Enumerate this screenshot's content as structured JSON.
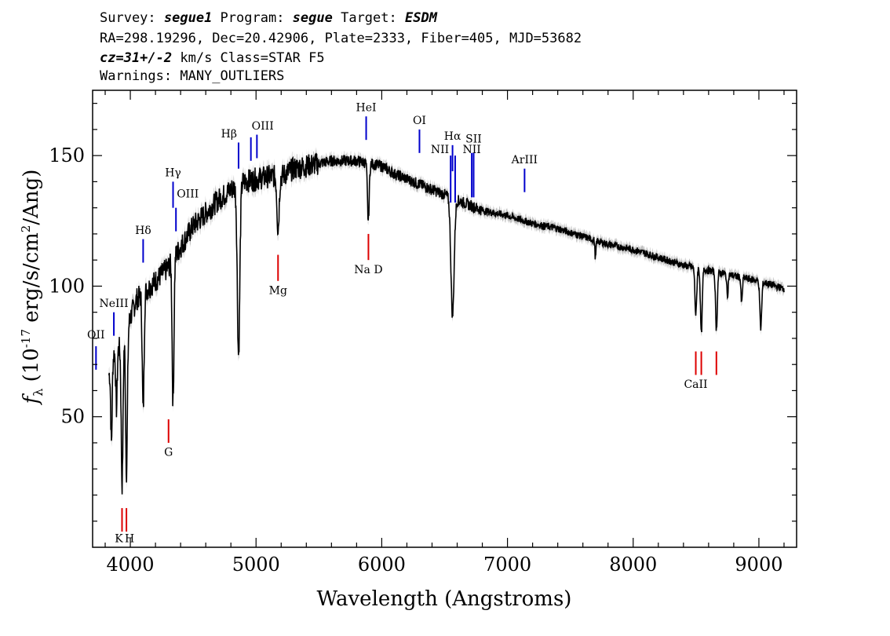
{
  "header": {
    "line1": [
      {
        "text": "Survey: ",
        "italic": false
      },
      {
        "text": "segue1",
        "italic": true
      },
      {
        "text": " Program: ",
        "italic": false
      },
      {
        "text": "segue",
        "italic": true
      },
      {
        "text": " Target: ",
        "italic": false
      },
      {
        "text": "ESDM",
        "italic": true
      }
    ],
    "line2": "RA=298.19296, Dec=20.42906, Plate=2333, Fiber=405, MJD=53682",
    "line3": [
      {
        "text": "cz=31+/-2",
        "italic": true
      },
      {
        "text": " km/s Class=STAR F5",
        "italic": false
      }
    ],
    "line4": "Warnings: MANY_OUTLIERS"
  },
  "chart_data": {
    "type": "line",
    "xlabel": "Wavelength (Angstroms)",
    "ylabel_parts": {
      "f": "f",
      "sub": "λ",
      "pre": " (10",
      "exp1": "-17",
      "mid": " erg/s/cm",
      "exp2": "2",
      "post": "/Ang)"
    },
    "xlim": [
      3700,
      9300
    ],
    "ylim": [
      0,
      175
    ],
    "xticks_major": [
      4000,
      5000,
      6000,
      7000,
      8000,
      9000
    ],
    "xtick_labels": [
      "4000",
      "5000",
      "6000",
      "7000",
      "8000",
      "9000"
    ],
    "yticks_major": [
      50,
      100,
      150
    ],
    "ytick_labels": [
      "50",
      "100",
      "150"
    ],
    "colors": {
      "spectrum": "#000000",
      "error": "#b0b0b0",
      "emission": "#0000cc",
      "absorption": "#dd0000"
    },
    "continuum_points": [
      [
        3830,
        66
      ],
      [
        3870,
        74
      ],
      [
        3920,
        77
      ],
      [
        4000,
        88
      ],
      [
        4050,
        95
      ],
      [
        4100,
        97
      ],
      [
        4200,
        102
      ],
      [
        4300,
        107
      ],
      [
        4400,
        115
      ],
      [
        4500,
        123
      ],
      [
        4600,
        128
      ],
      [
        4700,
        133
      ],
      [
        4800,
        137
      ],
      [
        4900,
        140
      ],
      [
        5000,
        141
      ],
      [
        5100,
        142
      ],
      [
        5200,
        142
      ],
      [
        5300,
        145
      ],
      [
        5400,
        146
      ],
      [
        5500,
        147
      ],
      [
        5600,
        148
      ],
      [
        5700,
        148
      ],
      [
        5800,
        148
      ],
      [
        5900,
        147
      ],
      [
        6000,
        146
      ],
      [
        6100,
        143
      ],
      [
        6200,
        141
      ],
      [
        6300,
        139
      ],
      [
        6400,
        137
      ],
      [
        6500,
        135
      ],
      [
        6600,
        133
      ],
      [
        6700,
        131
      ],
      [
        6800,
        129
      ],
      [
        7000,
        127
      ],
      [
        7200,
        124
      ],
      [
        7400,
        122
      ],
      [
        7600,
        119
      ],
      [
        7800,
        116
      ],
      [
        8000,
        114
      ],
      [
        8200,
        111
      ],
      [
        8400,
        108
      ],
      [
        8600,
        106
      ],
      [
        8800,
        104
      ],
      [
        9000,
        102
      ],
      [
        9200,
        99
      ]
    ],
    "absorption_dips": [
      {
        "x": 3850,
        "depth": 30,
        "width": 8
      },
      {
        "x": 3890,
        "depth": 22,
        "width": 8
      },
      {
        "x": 3935,
        "depth": 55,
        "width": 10
      },
      {
        "x": 3970,
        "depth": 55,
        "width": 10
      },
      {
        "x": 4102,
        "depth": 45,
        "width": 10
      },
      {
        "x": 4340,
        "depth": 55,
        "width": 10
      },
      {
        "x": 4861,
        "depth": 65,
        "width": 14
      },
      {
        "x": 5175,
        "depth": 20,
        "width": 12
      },
      {
        "x": 5893,
        "depth": 22,
        "width": 10
      },
      {
        "x": 6563,
        "depth": 45,
        "width": 18
      },
      {
        "x": 7700,
        "depth": 7,
        "width": 6
      },
      {
        "x": 8498,
        "depth": 18,
        "width": 10
      },
      {
        "x": 8542,
        "depth": 25,
        "width": 10
      },
      {
        "x": 8662,
        "depth": 22,
        "width": 10
      },
      {
        "x": 8750,
        "depth": 8,
        "width": 8
      },
      {
        "x": 8863,
        "depth": 10,
        "width": 8
      },
      {
        "x": 9015,
        "depth": 18,
        "width": 10
      }
    ],
    "emission_lines": [
      {
        "label": "OII",
        "x": 3727,
        "y0": 68,
        "y1": 77,
        "ly": 80,
        "align": "middle"
      },
      {
        "label": "NeIII",
        "x": 3869,
        "y0": 81,
        "y1": 90,
        "ly": 92,
        "align": "middle"
      },
      {
        "label": "Hδ",
        "x": 4102,
        "y0": 109,
        "y1": 118,
        "ly": 120,
        "align": "middle"
      },
      {
        "label": "Hγ",
        "x": 4340,
        "y0": 130,
        "y1": 140,
        "ly": 142,
        "align": "middle"
      },
      {
        "label": "OIII",
        "x": 4363,
        "y0": 121,
        "y1": 130,
        "ly": 134,
        "align": "start"
      },
      {
        "label": "Hβ",
        "x": 4861,
        "y0": 145,
        "y1": 155,
        "ly": 157,
        "align": "end"
      },
      {
        "label": "OIII",
        "x": 4959,
        "y0": 148,
        "y1": 157,
        "ly": 160,
        "align": "start"
      },
      {
        "label": "",
        "x": 5007,
        "y0": 149,
        "y1": 158,
        "ly": 0,
        "align": "middle"
      },
      {
        "label": "HeI",
        "x": 5876,
        "y0": 156,
        "y1": 165,
        "ly": 167,
        "align": "middle"
      },
      {
        "label": "OI",
        "x": 6300,
        "y0": 151,
        "y1": 160,
        "ly": 162,
        "align": "middle"
      },
      {
        "label": "NII",
        "x": 6548,
        "y0": 132,
        "y1": 150,
        "ly": 151,
        "align": "end"
      },
      {
        "label": "Hα",
        "x": 6563,
        "y0": 144,
        "y1": 154,
        "ly": 156,
        "align": "middle"
      },
      {
        "label": "",
        "x": 6584,
        "y0": 132,
        "y1": 150,
        "ly": 0,
        "align": "middle"
      },
      {
        "label": "NII",
        "x": 6716,
        "y0": 134,
        "y1": 151,
        "ly": 151,
        "align": "middle"
      },
      {
        "label": "SII",
        "x": 6731,
        "y0": 134,
        "y1": 151,
        "ly": 155,
        "align": "middle"
      },
      {
        "label": "ArIII",
        "x": 7136,
        "y0": 136,
        "y1": 145,
        "ly": 147,
        "align": "middle"
      }
    ],
    "absorption_lines": [
      {
        "label": "K",
        "x": 3934,
        "y0": 6,
        "y1": 15,
        "ly": 2
      },
      {
        "label": "H",
        "x": 3969,
        "y0": 6,
        "y1": 15,
        "ly": 2
      },
      {
        "label": "G",
        "x": 4304,
        "y0": 40,
        "y1": 49,
        "ly": 35
      },
      {
        "label": "Mg",
        "x": 5175,
        "y0": 102,
        "y1": 112,
        "ly": 97
      },
      {
        "label": "Na D",
        "x": 5894,
        "y0": 110,
        "y1": 120,
        "ly": 105
      },
      {
        "label": "CaII",
        "x": 8498,
        "y0": 66,
        "y1": 75,
        "ly": 61
      },
      {
        "label": "",
        "x": 8542,
        "y0": 66,
        "y1": 75,
        "ly": 0
      },
      {
        "label": "",
        "x": 8662,
        "y0": 66,
        "y1": 75,
        "ly": 0
      }
    ]
  }
}
